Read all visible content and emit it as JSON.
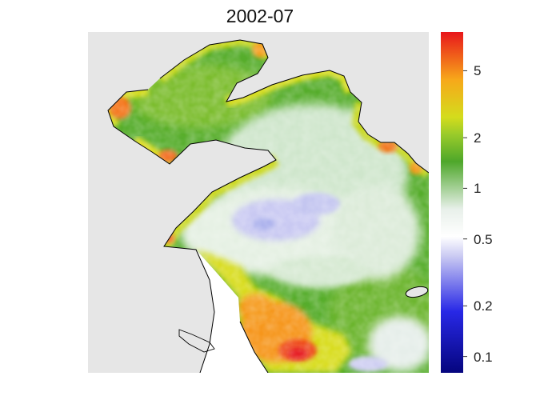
{
  "title": "2002-07",
  "colorbar": {
    "scale": "log",
    "range": [
      0.08,
      8.5
    ],
    "ticks": [
      {
        "value": 5,
        "label": "5"
      },
      {
        "value": 2,
        "label": "2"
      },
      {
        "value": 1,
        "label": "1"
      },
      {
        "value": 0.5,
        "label": "0.5"
      },
      {
        "value": 0.2,
        "label": "0.2"
      },
      {
        "value": 0.1,
        "label": "0.1"
      }
    ],
    "colors": {
      "top": "#e8161b",
      "orange": "#f7a81a",
      "yellow": "#d4dc1c",
      "green": "#4ea72a",
      "light": "#e8f0ea",
      "white": "#ffffff",
      "lavender": "#c8c8f2",
      "blue": "#2828e6",
      "bottom": "#05057e"
    }
  },
  "colors": {
    "land": "#e6e6e6",
    "coastline": "#000000",
    "water_nodata": "#ffffff"
  }
}
